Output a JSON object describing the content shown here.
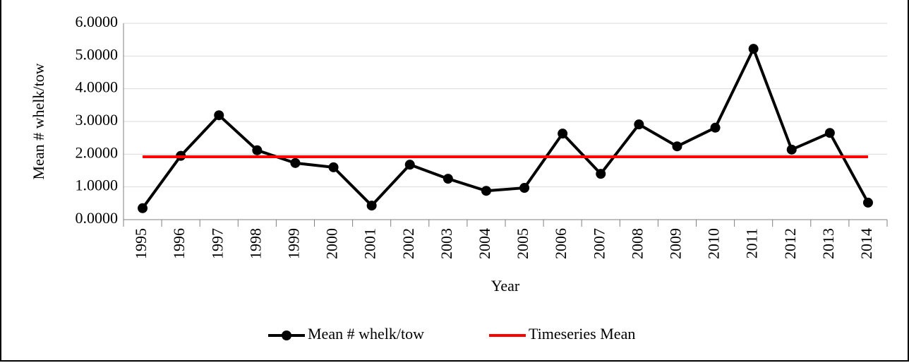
{
  "chart_data": {
    "type": "line",
    "x_label": "Year",
    "y_label": "Mean # whelk/tow",
    "categories": [
      "1995",
      "1996",
      "1997",
      "1998",
      "1999",
      "2000",
      "2001",
      "2002",
      "2003",
      "2004",
      "2005",
      "2006",
      "2007",
      "2008",
      "2009",
      "2010",
      "2011",
      "2012",
      "2013",
      "2014"
    ],
    "series": [
      {
        "name": "Mean # whelk/tow",
        "color": "#000000",
        "marker": true,
        "values": [
          0.35,
          1.95,
          3.19,
          2.12,
          1.73,
          1.6,
          0.43,
          1.68,
          1.25,
          0.88,
          0.97,
          2.63,
          1.4,
          2.91,
          2.24,
          2.81,
          5.22,
          2.14,
          2.65,
          0.52
        ]
      },
      {
        "name": "Timeseries Mean",
        "color": "#ff0000",
        "marker": false,
        "values": [
          1.92,
          1.92,
          1.92,
          1.92,
          1.92,
          1.92,
          1.92,
          1.92,
          1.92,
          1.92,
          1.92,
          1.92,
          1.92,
          1.92,
          1.92,
          1.92,
          1.92,
          1.92,
          1.92,
          1.92
        ]
      }
    ],
    "ylim": [
      0,
      6
    ],
    "yticks": [
      {
        "value": 0,
        "label": "0.0000"
      },
      {
        "value": 1,
        "label": "1.0000"
      },
      {
        "value": 2,
        "label": "2.0000"
      },
      {
        "value": 3,
        "label": "3.0000"
      },
      {
        "value": 4,
        "label": "4.0000"
      },
      {
        "value": 5,
        "label": "5.0000"
      },
      {
        "value": 6,
        "label": "6.0000"
      }
    ],
    "grid": true,
    "legend": "bottom"
  }
}
